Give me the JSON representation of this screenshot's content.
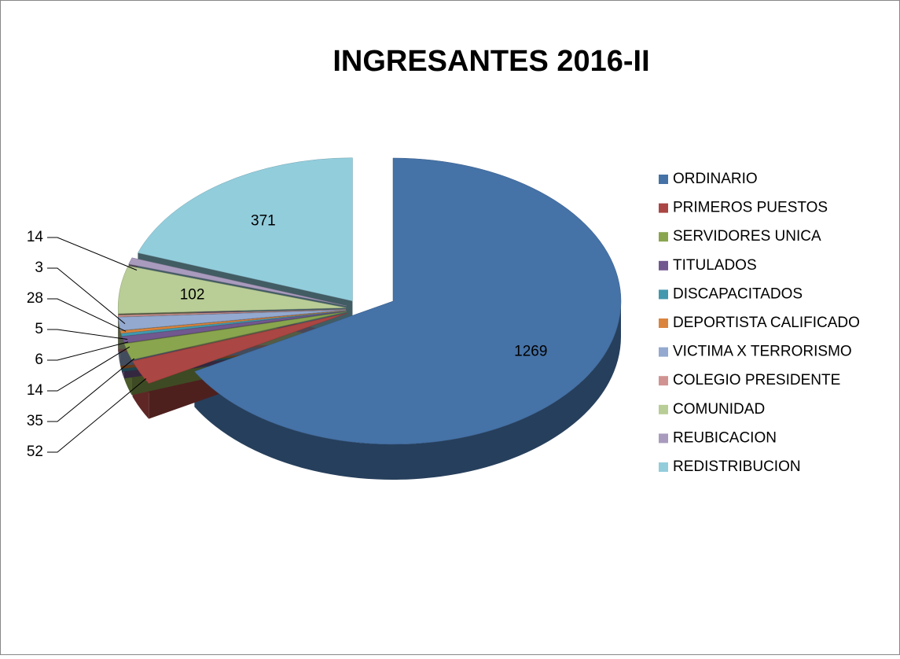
{
  "chart_data": {
    "type": "pie",
    "title": "INGRESANTES 2016-II",
    "categories": [
      "ORDINARIO",
      "PRIMEROS PUESTOS",
      "SERVIDORES UNICA",
      "TITULADOS",
      "DISCAPACITADOS",
      "DEPORTISTA CALIFICADO",
      "VICTIMA X TERRORISMO",
      "COLEGIO PRESIDENTE",
      "COMUNIDAD",
      "REUBICACION",
      "REDISTRIBUCION"
    ],
    "values": [
      1269,
      52,
      35,
      14,
      6,
      5,
      28,
      3,
      102,
      14,
      371
    ],
    "colors": [
      "#4572a7",
      "#aa4643",
      "#89a54e",
      "#71588f",
      "#4198af",
      "#db843d",
      "#93a9cf",
      "#d19392",
      "#b9cd96",
      "#a99bbd",
      "#92cddc"
    ],
    "legend": "right"
  }
}
